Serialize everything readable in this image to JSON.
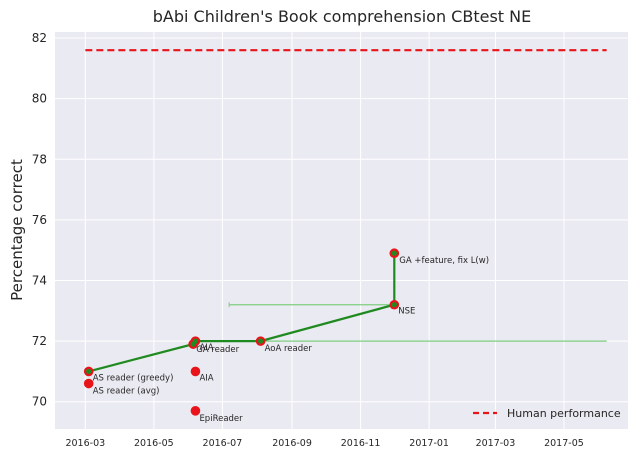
{
  "chart_data": {
    "type": "scatter",
    "title": "bAbi Children's Book comprehension CBtest NE",
    "xlabel": "",
    "ylabel": "Percentage correct",
    "xlim": [
      "2016-02-03",
      "2017-06-27"
    ],
    "ylim": [
      69.1,
      82.2
    ],
    "yticks": [
      70,
      72,
      74,
      76,
      78,
      80,
      82
    ],
    "ytick_labels": [
      "70",
      "72",
      "74",
      "76",
      "78",
      "80",
      "82"
    ],
    "xticks": [
      "2016-03-01",
      "2016-05-01",
      "2016-07-01",
      "2016-09-01",
      "2016-11-01",
      "2017-01-01",
      "2017-03-01",
      "2017-05-01"
    ],
    "xtick_labels": [
      "2016-03",
      "2016-05",
      "2016-07",
      "2016-09",
      "2016-11",
      "2017-01",
      "2017-03",
      "2017-05"
    ],
    "grid": true,
    "legend": {
      "position": "bottom-right"
    },
    "points": [
      {
        "label": "AS reader (greedy)",
        "date": "2016-03-04",
        "value": 71.0
      },
      {
        "label": "AS reader (avg)",
        "date": "2016-03-04",
        "value": 70.6
      },
      {
        "label": "AIA",
        "date": "2016-06-07",
        "value": 72.0
      },
      {
        "label": "GA reader",
        "date": "2016-06-05",
        "value": 71.9
      },
      {
        "label": "AIA",
        "date": "2016-06-07",
        "value": 71.0
      },
      {
        "label": "EpiReader",
        "date": "2016-06-07",
        "value": 69.7
      },
      {
        "label": "AoA reader",
        "date": "2016-08-04",
        "value": 72.0
      },
      {
        "label": "NSE",
        "date": "2016-12-01",
        "value": 73.2
      },
      {
        "label": "GA +feature, fix L(w)",
        "date": "2016-12-01",
        "value": 74.9
      }
    ],
    "sota_line": [
      {
        "date": "2016-03-04",
        "value": 71.0
      },
      {
        "date": "2016-06-05",
        "value": 71.9
      },
      {
        "date": "2016-06-07",
        "value": 72.0
      },
      {
        "date": "2016-08-04",
        "value": 72.0
      },
      {
        "date": "2016-12-01",
        "value": 73.2
      },
      {
        "date": "2016-12-01",
        "value": 74.9
      }
    ],
    "ranges": [
      {
        "value": 73.2,
        "start": "2016-07-07",
        "end": "2016-12-01"
      },
      {
        "value": 72.0,
        "start": "2016-08-04",
        "end": "2017-06-08"
      }
    ],
    "series": [
      {
        "name": "Human performance",
        "type": "hline",
        "value": 81.6,
        "start": "2016-03-01",
        "end": "2017-06-08",
        "color": "#e8141a"
      }
    ],
    "colors": {
      "background": "#eaeaf2",
      "grid": "#ffffff",
      "point": "#e8141a",
      "sota": "#1f8a1f",
      "range": "#7fcf7f"
    }
  }
}
